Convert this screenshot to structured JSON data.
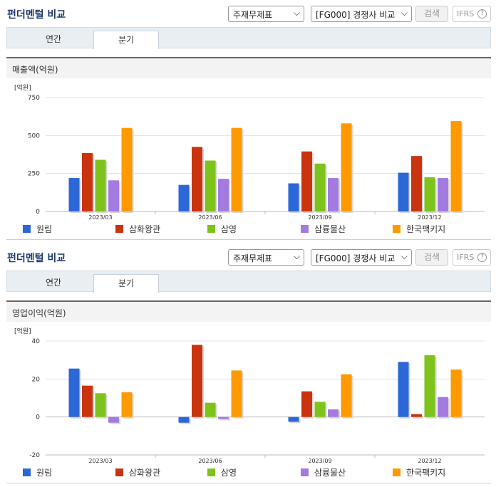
{
  "panels": [
    {
      "title": "펀더멘털 비교",
      "select_type": "주재무제표",
      "select_compare": "[FG000] 경쟁사 비교",
      "search_label": "검색",
      "ifrs_label": "IFRS",
      "help_glyph": "?",
      "tabs": [
        {
          "label": "연간",
          "active": false
        },
        {
          "label": "분기",
          "active": true
        }
      ],
      "metric_label": "매출액(억원)",
      "unit_label": "[억원]"
    },
    {
      "title": "펀더멘털 비교",
      "select_type": "주재무제표",
      "select_compare": "[FG000] 경쟁사 비교",
      "search_label": "검색",
      "ifrs_label": "IFRS",
      "help_glyph": "?",
      "tabs": [
        {
          "label": "연간",
          "active": false
        },
        {
          "label": "분기",
          "active": true
        }
      ],
      "metric_label": "영업이익(억원)",
      "unit_label": "[억원]"
    }
  ],
  "chart_data": [
    {
      "type": "bar",
      "title": "매출액(억원)",
      "ylabel": "[억원]",
      "ylim": [
        0,
        750
      ],
      "yticks": [
        0,
        250,
        500,
        750
      ],
      "categories": [
        "2023/03",
        "2023/06",
        "2023/09",
        "2023/12"
      ],
      "series": [
        {
          "name": "원림",
          "color": "#2b67d6",
          "values": [
            220,
            175,
            185,
            255
          ]
        },
        {
          "name": "삼화왕관",
          "color": "#c9340e",
          "values": [
            385,
            425,
            395,
            365
          ]
        },
        {
          "name": "삼영",
          "color": "#7dc31b",
          "values": [
            340,
            335,
            315,
            225
          ]
        },
        {
          "name": "삼륭물산",
          "color": "#a37be0",
          "values": [
            205,
            215,
            220,
            220
          ]
        },
        {
          "name": "한국팩키지",
          "color": "#ff9900",
          "values": [
            550,
            550,
            580,
            595
          ]
        }
      ],
      "legend": "bottom",
      "grid": true
    },
    {
      "type": "bar",
      "title": "영업이익(억원)",
      "ylabel": "[억원]",
      "ylim": [
        -20,
        40
      ],
      "yticks": [
        -20,
        0,
        20,
        40
      ],
      "categories": [
        "2023/03",
        "2023/06",
        "2023/09",
        "2023/12"
      ],
      "series": [
        {
          "name": "원림",
          "color": "#2b67d6",
          "values": [
            25.5,
            -3,
            -2.5,
            29
          ]
        },
        {
          "name": "삼화왕관",
          "color": "#c9340e",
          "values": [
            16.5,
            38,
            13.5,
            1.5
          ]
        },
        {
          "name": "삼영",
          "color": "#7dc31b",
          "values": [
            12.5,
            7.5,
            8,
            32.5
          ]
        },
        {
          "name": "삼륭물산",
          "color": "#a37be0",
          "values": [
            -3,
            -1,
            4,
            10.5
          ]
        },
        {
          "name": "한국팩키지",
          "color": "#ff9900",
          "values": [
            13,
            24.5,
            22.5,
            25
          ]
        }
      ],
      "legend": "bottom",
      "grid": true
    }
  ]
}
